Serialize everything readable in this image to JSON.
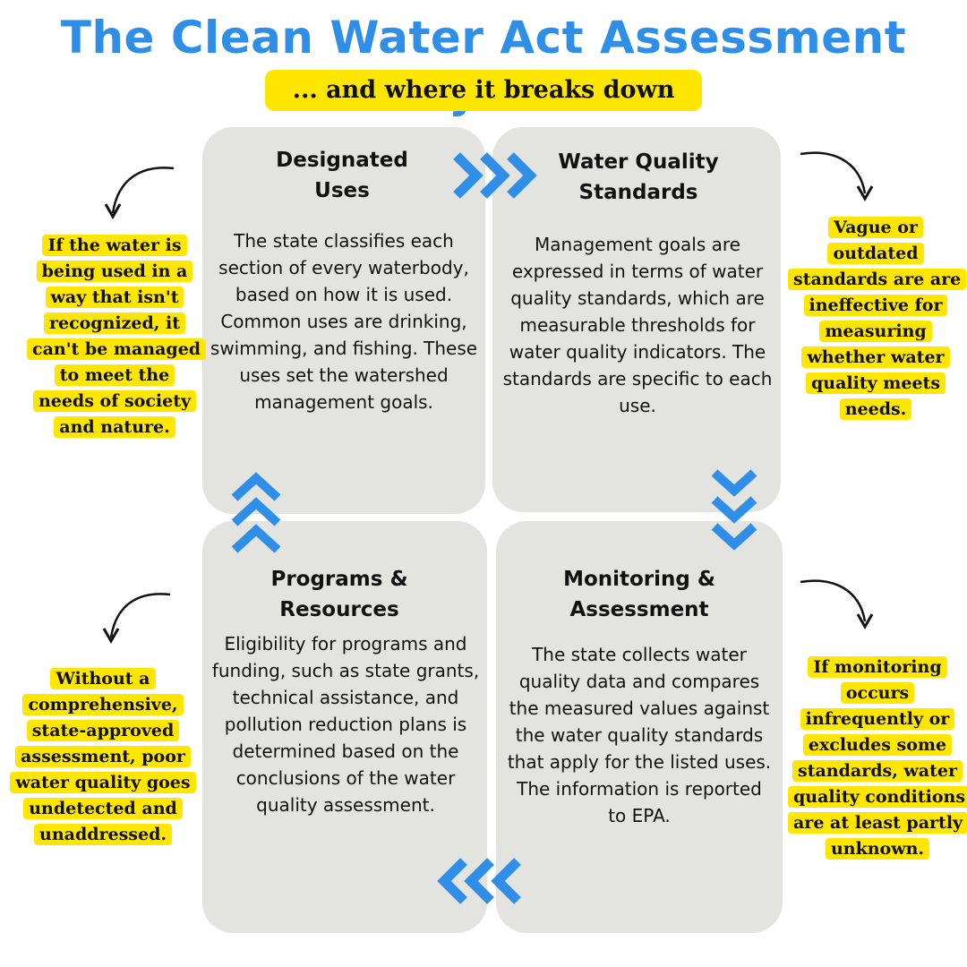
{
  "header": {
    "title": "The Clean Water Act Assessment Cycle",
    "subtitle": "... and where it breaks down"
  },
  "steps": {
    "designated_uses": {
      "title_line1": "Designated",
      "title_line2": "Uses",
      "body": "The state classifies each section of every waterbody, based on how it is used. Common uses are drinking, swimming, and fishing. These uses set the watershed management goals."
    },
    "water_quality_standards": {
      "title_line1": "Water Quality",
      "title_line2": "Standards",
      "body": "Management goals are expressed in terms of water quality standards, which are measurable thresholds for water quality indicators. The standards are specific to each use."
    },
    "monitoring_assessment": {
      "title_line1": "Monitoring &",
      "title_line2": "Assessment",
      "body": "The state collects water quality data and compares the measured values against the water quality standards that apply for the listed uses. The information is reported to EPA."
    },
    "programs_resources": {
      "title_line1": "Programs &",
      "title_line2": "Resources",
      "body": "Eligibility for programs and funding, such as state grants, technical assistance, and pollution reduction plans is determined based on the conclusions of the water quality assessment."
    }
  },
  "breakdowns": {
    "uses_note": "If the water is being used in a way that isn't recognized, it can't be managed to meet the needs of society and nature.",
    "standards_note": "Vague or outdated standards are are ineffective for measuring whether water quality meets needs.",
    "monitoring_note": "If monitoring occurs infrequently or excludes some standards, water quality conditions are at least partly unknown.",
    "programs_note": "Without a comprehensive, state-approved assessment, poor water quality goes undetected and unaddressed."
  },
  "colors": {
    "title_blue": "#2f8fe8",
    "arrow_blue": "#2f8fe8",
    "highlight_yellow": "#ffe600",
    "box_gray": "#e3e3df"
  },
  "icons": {
    "cycle_arrows": "chevron-arrows",
    "callout_arrows": "curved-arrow"
  }
}
